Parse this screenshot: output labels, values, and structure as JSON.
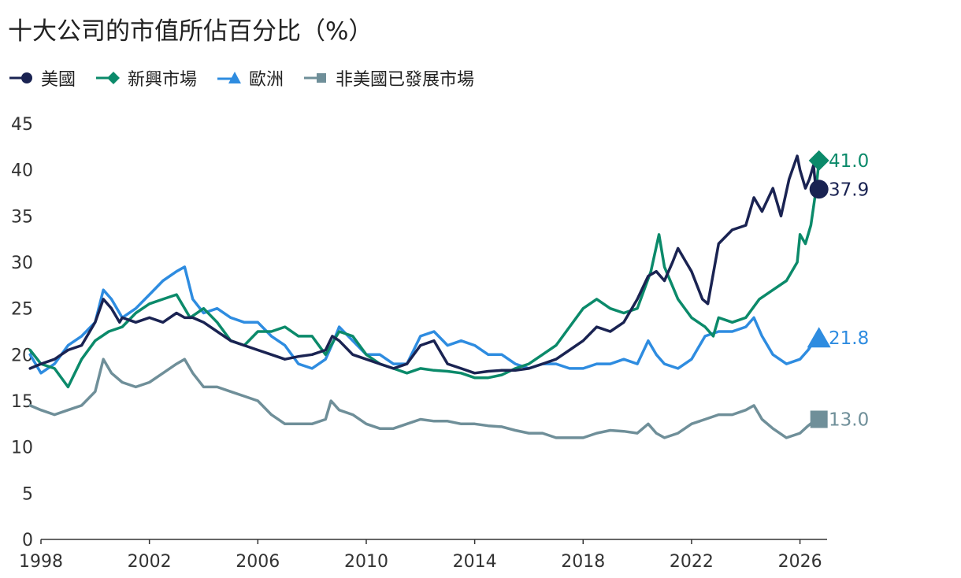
{
  "title": "十大公司的市值所佔百分比（%）",
  "colors": {
    "us": "#1a2352",
    "em": "#0b8a6a",
    "eu": "#2e8ce0",
    "dm": "#6f8f99"
  },
  "chart_data": {
    "type": "line",
    "title": "十大公司的市值所佔百分比（%）",
    "xlabel": "",
    "ylabel": "",
    "xlim": [
      1998,
      2027
    ],
    "ylim": [
      0,
      45
    ],
    "yticks": [
      "0",
      "5",
      "10",
      "15",
      "20",
      "25",
      "30",
      "35",
      "40",
      "45"
    ],
    "xticks": [
      "1998",
      "2002",
      "2006",
      "2010",
      "2014",
      "2018",
      "2022",
      "2026"
    ],
    "legend_position": "top-left",
    "grid": false,
    "series": [
      {
        "name": "美國",
        "key": "us",
        "marker": "circle",
        "end_label": "37.9",
        "x": [
          1997.6,
          1998,
          1998.5,
          1999,
          1999.5,
          2000,
          2000.3,
          2000.6,
          2000.9,
          2001,
          2001.5,
          2002,
          2002.5,
          2003,
          2003.3,
          2003.6,
          2004,
          2004.5,
          2005,
          2005.5,
          2006,
          2006.5,
          2007,
          2007.5,
          2008,
          2008.5,
          2008.75,
          2009,
          2009.5,
          2010,
          2010.5,
          2011,
          2011.5,
          2012,
          2012.5,
          2013,
          2013.5,
          2014,
          2014.5,
          2015,
          2015.5,
          2016,
          2016.5,
          2017,
          2017.5,
          2018,
          2018.5,
          2019,
          2019.5,
          2020,
          2020.4,
          2020.7,
          2021,
          2021.3,
          2021.5,
          2021.8,
          2022,
          2022.4,
          2022.6,
          2023,
          2023.5,
          2024,
          2024.3,
          2024.6,
          2025,
          2025.3,
          2025.6,
          2025.9,
          2026,
          2026.2,
          2026.35,
          2026.5,
          2026.6,
          2026.7
        ],
        "y": [
          18.5,
          19,
          19.5,
          20.5,
          21,
          23.5,
          26,
          25,
          23.5,
          24,
          23.5,
          24,
          23.5,
          24.5,
          24,
          24,
          23.5,
          22.5,
          21.5,
          21,
          20.5,
          20,
          19.5,
          19.8,
          20,
          20.5,
          22,
          21.5,
          20,
          19.5,
          19,
          18.5,
          19,
          21,
          21.5,
          19,
          18.5,
          18,
          18.2,
          18.3,
          18.3,
          18.5,
          19,
          19.5,
          20.5,
          21.5,
          23,
          22.5,
          23.5,
          26,
          28.5,
          29,
          28,
          30,
          31.5,
          30,
          29,
          26,
          25.5,
          32,
          33.5,
          34,
          37,
          35.5,
          38,
          35,
          39,
          41.5,
          40,
          38,
          39,
          40.5,
          37.5,
          37.9
        ]
      },
      {
        "name": "新興市場",
        "key": "em",
        "marker": "diamond",
        "end_label": "41.0",
        "x": [
          1997.6,
          1998,
          1998.5,
          1999,
          1999.5,
          2000,
          2000.5,
          2001,
          2001.5,
          2002,
          2002.5,
          2003,
          2003.5,
          2004,
          2004.5,
          2005,
          2005.5,
          2006,
          2006.5,
          2007,
          2007.5,
          2008,
          2008.5,
          2009,
          2009.5,
          2010,
          2010.5,
          2011,
          2011.5,
          2012,
          2012.5,
          2013,
          2013.5,
          2014,
          2014.5,
          2015,
          2015.5,
          2016,
          2016.5,
          2017,
          2017.5,
          2018,
          2018.5,
          2019,
          2019.5,
          2020,
          2020.5,
          2020.8,
          2021,
          2021.5,
          2022,
          2022.5,
          2022.8,
          2023,
          2023.5,
          2024,
          2024.5,
          2025,
          2025.5,
          2025.9,
          2026,
          2026.2,
          2026.4,
          2026.6,
          2026.7
        ],
        "y": [
          20.5,
          19,
          18.5,
          16.5,
          19.5,
          21.5,
          22.5,
          23,
          24.5,
          25.5,
          26,
          26.5,
          24,
          25,
          23.5,
          21.5,
          21,
          22.5,
          22.5,
          23,
          22,
          22,
          20,
          22.5,
          22,
          20,
          19,
          18.5,
          18,
          18.5,
          18.3,
          18.2,
          18,
          17.5,
          17.5,
          17.8,
          18.5,
          19,
          20,
          21,
          23,
          25,
          26,
          25,
          24.5,
          25,
          29,
          33,
          29.5,
          26,
          24,
          23,
          22,
          24,
          23.5,
          24,
          26,
          27,
          28,
          30,
          33,
          32,
          34,
          38,
          41.0
        ]
      },
      {
        "name": "歐洲",
        "key": "eu",
        "marker": "triangle",
        "end_label": "21.8",
        "x": [
          1997.6,
          1998,
          1998.5,
          1999,
          1999.5,
          2000,
          2000.3,
          2000.6,
          2001,
          2001.5,
          2002,
          2002.5,
          2003,
          2003.3,
          2003.6,
          2004,
          2004.5,
          2005,
          2005.5,
          2006,
          2006.5,
          2007,
          2007.5,
          2008,
          2008.5,
          2008.8,
          2009,
          2009.5,
          2010,
          2010.5,
          2011,
          2011.5,
          2012,
          2012.5,
          2013,
          2013.5,
          2014,
          2014.5,
          2015,
          2015.5,
          2016,
          2016.5,
          2017,
          2017.5,
          2018,
          2018.5,
          2019,
          2019.5,
          2020,
          2020.4,
          2020.7,
          2021,
          2021.5,
          2022,
          2022.5,
          2023,
          2023.5,
          2024,
          2024.3,
          2024.6,
          2025,
          2025.5,
          2026,
          2026.3,
          2026.6
        ],
        "y": [
          20,
          18,
          19,
          21,
          22,
          23.5,
          27,
          26,
          24,
          25,
          26.5,
          28,
          29,
          29.5,
          26,
          24.5,
          25,
          24,
          23.5,
          23.5,
          22,
          21,
          19,
          18.5,
          19.5,
          21.5,
          23,
          21.5,
          20,
          20,
          19,
          19,
          22,
          22.5,
          21,
          21.5,
          21,
          20,
          20,
          19,
          18.5,
          19,
          19,
          18.5,
          18.5,
          19,
          19,
          19.5,
          19,
          21.5,
          20,
          19,
          18.5,
          19.5,
          22,
          22.5,
          22.5,
          23,
          24,
          22,
          20,
          19,
          19.5,
          20.5,
          21.8
        ]
      },
      {
        "name": "非美國已發展市場",
        "key": "dm",
        "marker": "square",
        "end_label": "13.0",
        "x": [
          1997.6,
          1998,
          1998.5,
          1999,
          1999.5,
          2000,
          2000.3,
          2000.6,
          2001,
          2001.5,
          2002,
          2002.5,
          2003,
          2003.3,
          2003.6,
          2004,
          2004.5,
          2005,
          2005.5,
          2006,
          2006.5,
          2007,
          2007.5,
          2008,
          2008.5,
          2008.7,
          2009,
          2009.5,
          2010,
          2010.5,
          2011,
          2011.5,
          2012,
          2012.5,
          2013,
          2013.5,
          2014,
          2014.5,
          2015,
          2015.5,
          2016,
          2016.5,
          2017,
          2017.5,
          2018,
          2018.5,
          2019,
          2019.5,
          2020,
          2020.4,
          2020.7,
          2021,
          2021.5,
          2022,
          2022.5,
          2023,
          2023.5,
          2024,
          2024.3,
          2024.6,
          2025,
          2025.5,
          2026,
          2026.3,
          2026.6
        ],
        "y": [
          14.5,
          14,
          13.5,
          14,
          14.5,
          16,
          19.5,
          18,
          17,
          16.5,
          17,
          18,
          19,
          19.5,
          18,
          16.5,
          16.5,
          16,
          15.5,
          15,
          13.5,
          12.5,
          12.5,
          12.5,
          13,
          15,
          14,
          13.5,
          12.5,
          12,
          12,
          12.5,
          13,
          12.8,
          12.8,
          12.5,
          12.5,
          12.3,
          12.2,
          11.8,
          11.5,
          11.5,
          11,
          11,
          11,
          11.5,
          11.8,
          11.7,
          11.5,
          12.5,
          11.5,
          11,
          11.5,
          12.5,
          13,
          13.5,
          13.5,
          14,
          14.5,
          13,
          12,
          11,
          11.5,
          12.3,
          13.0
        ]
      }
    ]
  }
}
